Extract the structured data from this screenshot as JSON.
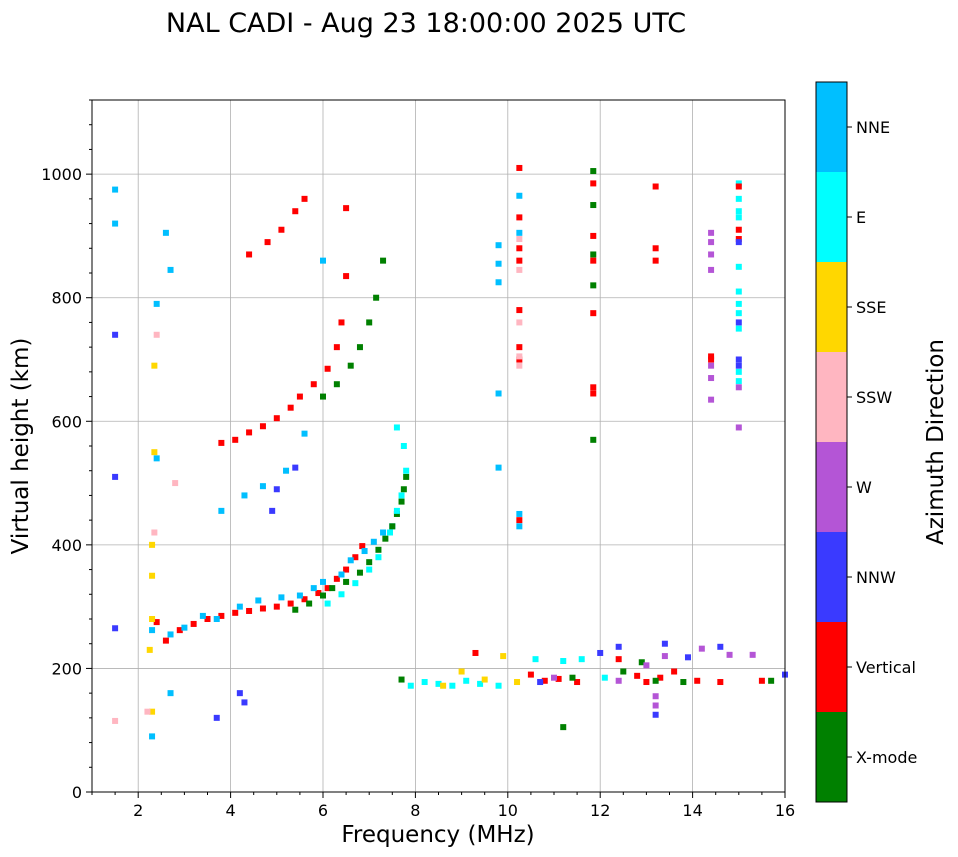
{
  "chart_data": {
    "type": "scatter",
    "title": "NAL CADI - Aug 23 18:00:00 2025 UTC",
    "xlabel": "Frequency (MHz)",
    "ylabel": "Virtual height (km)",
    "xlim": [
      1,
      16
    ],
    "ylim": [
      0,
      1120
    ],
    "x_ticks": [
      2,
      4,
      6,
      8,
      10,
      12,
      14,
      16
    ],
    "y_ticks": [
      0,
      200,
      400,
      600,
      800,
      1000
    ],
    "grid": true,
    "colorbar": {
      "label": "Azimuth Direction",
      "categories": [
        "X-mode",
        "Vertical",
        "NNW",
        "W",
        "SSW",
        "SSE",
        "E",
        "NNE"
      ],
      "colors": [
        "#008000",
        "#ff0000",
        "#3a3aff",
        "#b455d6",
        "#ffb6c1",
        "#ffd700",
        "#00ffff",
        "#00bfff"
      ]
    },
    "echo_groups": [
      {
        "name": "o-trace-f1",
        "category": "Vertical",
        "points": [
          [
            2.4,
            275
          ],
          [
            2.6,
            245
          ],
          [
            2.9,
            262
          ],
          [
            3.2,
            272
          ],
          [
            3.5,
            280
          ],
          [
            3.8,
            285
          ],
          [
            4.1,
            290
          ],
          [
            4.4,
            293
          ],
          [
            4.7,
            297
          ],
          [
            5.0,
            300
          ],
          [
            5.3,
            305
          ],
          [
            5.6,
            312
          ],
          [
            5.9,
            322
          ],
          [
            6.1,
            330
          ],
          [
            6.3,
            345
          ],
          [
            6.5,
            360
          ],
          [
            6.7,
            380
          ],
          [
            6.85,
            398
          ]
        ]
      },
      {
        "name": "o-trace-f1-scatter",
        "category": "NNE",
        "points": [
          [
            2.3,
            262
          ],
          [
            2.7,
            255
          ],
          [
            3.0,
            266
          ],
          [
            3.4,
            285
          ],
          [
            3.7,
            280
          ],
          [
            4.2,
            300
          ],
          [
            4.6,
            310
          ],
          [
            5.1,
            315
          ],
          [
            5.5,
            318
          ],
          [
            5.8,
            330
          ],
          [
            6.0,
            340
          ],
          [
            6.4,
            352
          ],
          [
            6.6,
            375
          ],
          [
            6.9,
            390
          ],
          [
            7.1,
            405
          ],
          [
            7.3,
            420
          ],
          [
            7.5,
            430
          ]
        ]
      },
      {
        "name": "x-trace-f1",
        "category": "X-mode",
        "points": [
          [
            5.4,
            295
          ],
          [
            5.7,
            305
          ],
          [
            6.0,
            318
          ],
          [
            6.2,
            330
          ],
          [
            6.5,
            340
          ],
          [
            6.8,
            355
          ],
          [
            7.0,
            372
          ],
          [
            7.2,
            392
          ],
          [
            7.35,
            410
          ],
          [
            7.5,
            430
          ],
          [
            7.6,
            450
          ],
          [
            7.7,
            470
          ],
          [
            7.75,
            490
          ],
          [
            7.8,
            510
          ]
        ]
      },
      {
        "name": "x-trace-f1-scatter",
        "category": "E",
        "points": [
          [
            6.1,
            305
          ],
          [
            6.4,
            320
          ],
          [
            6.7,
            338
          ],
          [
            7.0,
            360
          ],
          [
            7.2,
            380
          ],
          [
            7.45,
            420
          ],
          [
            7.6,
            455
          ],
          [
            7.7,
            480
          ],
          [
            7.8,
            520
          ],
          [
            7.75,
            560
          ],
          [
            7.6,
            590
          ]
        ]
      },
      {
        "name": "multihop-o",
        "category": "Vertical",
        "points": [
          [
            3.8,
            565
          ],
          [
            4.1,
            570
          ],
          [
            4.4,
            582
          ],
          [
            4.7,
            592
          ],
          [
            5.0,
            605
          ],
          [
            5.3,
            622
          ],
          [
            5.5,
            640
          ],
          [
            5.8,
            660
          ],
          [
            6.1,
            685
          ],
          [
            6.3,
            720
          ],
          [
            6.4,
            760
          ],
          [
            6.5,
            835
          ]
        ]
      },
      {
        "name": "multihop-x",
        "category": "X-mode",
        "points": [
          [
            6.0,
            640
          ],
          [
            6.3,
            660
          ],
          [
            6.6,
            690
          ],
          [
            6.8,
            720
          ],
          [
            7.0,
            760
          ],
          [
            7.15,
            800
          ],
          [
            7.3,
            860
          ]
        ]
      },
      {
        "name": "multihop-upper",
        "category": "Vertical",
        "points": [
          [
            4.4,
            870
          ],
          [
            4.8,
            890
          ],
          [
            5.1,
            910
          ],
          [
            5.4,
            940
          ],
          [
            5.6,
            960
          ],
          [
            6.5,
            945
          ]
        ]
      },
      {
        "name": "low-f-echoes",
        "category": "SSE",
        "points": [
          [
            2.3,
            400
          ],
          [
            2.3,
            350
          ],
          [
            2.35,
            550
          ],
          [
            2.35,
            690
          ],
          [
            2.3,
            280
          ],
          [
            2.25,
            230
          ],
          [
            2.3,
            130
          ]
        ]
      },
      {
        "name": "low-f-pink",
        "category": "SSW",
        "points": [
          [
            2.35,
            420
          ],
          [
            2.4,
            740
          ],
          [
            2.2,
            130
          ],
          [
            1.5,
            115
          ],
          [
            2.8,
            500
          ]
        ]
      },
      {
        "name": "low-f-cyan",
        "category": "NNE",
        "points": [
          [
            1.5,
            975
          ],
          [
            1.5,
            920
          ],
          [
            2.6,
            905
          ],
          [
            2.7,
            845
          ],
          [
            2.4,
            790
          ],
          [
            2.4,
            540
          ],
          [
            2.3,
            90
          ],
          [
            2.7,
            160
          ],
          [
            3.8,
            455
          ],
          [
            4.3,
            480
          ],
          [
            4.7,
            495
          ],
          [
            5.2,
            520
          ],
          [
            5.6,
            580
          ],
          [
            6.0,
            860
          ]
        ]
      },
      {
        "name": "low-f-blue",
        "category": "NNW",
        "points": [
          [
            1.5,
            740
          ],
          [
            1.5,
            510
          ],
          [
            1.5,
            265
          ],
          [
            4.3,
            145
          ],
          [
            4.2,
            160
          ],
          [
            3.7,
            120
          ],
          [
            5.0,
            490
          ],
          [
            5.4,
            525
          ],
          [
            4.9,
            455
          ]
        ]
      },
      {
        "name": "e-layer-cyan",
        "category": "E",
        "points": [
          [
            7.9,
            172
          ],
          [
            8.2,
            178
          ],
          [
            8.5,
            175
          ],
          [
            8.8,
            172
          ],
          [
            9.1,
            180
          ],
          [
            9.4,
            175
          ],
          [
            9.8,
            172
          ],
          [
            10.6,
            215
          ],
          [
            11.2,
            212
          ],
          [
            11.6,
            215
          ],
          [
            12.1,
            185
          ]
        ]
      },
      {
        "name": "e-layer-yellow",
        "category": "SSE",
        "points": [
          [
            8.6,
            172
          ],
          [
            9.0,
            195
          ],
          [
            9.5,
            182
          ],
          [
            9.9,
            220
          ],
          [
            10.2,
            178
          ]
        ]
      },
      {
        "name": "e-layer-red",
        "category": "Vertical",
        "points": [
          [
            9.3,
            225
          ],
          [
            10.5,
            190
          ],
          [
            10.8,
            180
          ],
          [
            11.1,
            183
          ],
          [
            11.5,
            178
          ],
          [
            12.4,
            215
          ],
          [
            12.8,
            188
          ],
          [
            13.0,
            178
          ],
          [
            13.3,
            185
          ],
          [
            13.6,
            195
          ],
          [
            14.1,
            180
          ],
          [
            14.6,
            178
          ],
          [
            15.5,
            180
          ]
        ]
      },
      {
        "name": "e-layer-green",
        "category": "X-mode",
        "points": [
          [
            7.7,
            182
          ],
          [
            11.2,
            105
          ],
          [
            11.4,
            185
          ],
          [
            12.5,
            195
          ],
          [
            12.9,
            210
          ],
          [
            13.2,
            180
          ],
          [
            13.8,
            178
          ],
          [
            15.7,
            180
          ]
        ]
      },
      {
        "name": "e-layer-purple",
        "category": "W",
        "points": [
          [
            11.0,
            185
          ],
          [
            12.4,
            180
          ],
          [
            13.0,
            205
          ],
          [
            13.2,
            155
          ],
          [
            13.2,
            140
          ],
          [
            13.4,
            220
          ],
          [
            14.2,
            232
          ],
          [
            14.8,
            222
          ],
          [
            15.3,
            222
          ]
        ]
      },
      {
        "name": "e-layer-blue",
        "category": "NNW",
        "points": [
          [
            10.7,
            178
          ],
          [
            12.0,
            225
          ],
          [
            12.4,
            235
          ],
          [
            13.2,
            125
          ],
          [
            13.4,
            240
          ],
          [
            13.9,
            218
          ],
          [
            14.6,
            235
          ],
          [
            16.0,
            190
          ]
        ]
      },
      {
        "name": "col-10.2",
        "category": "Vertical",
        "points": [
          [
            10.25,
            1010
          ],
          [
            10.25,
            930
          ],
          [
            10.25,
            880
          ],
          [
            10.25,
            860
          ],
          [
            10.25,
            780
          ],
          [
            10.25,
            720
          ],
          [
            10.25,
            700
          ],
          [
            10.25,
            440
          ]
        ]
      },
      {
        "name": "col-10.2-pink",
        "category": "SSW",
        "points": [
          [
            10.25,
            895
          ],
          [
            10.25,
            845
          ],
          [
            10.25,
            760
          ],
          [
            10.25,
            705
          ],
          [
            10.25,
            690
          ]
        ]
      },
      {
        "name": "col-10.2-misc",
        "category": "NNE",
        "points": [
          [
            10.25,
            965
          ],
          [
            10.25,
            905
          ],
          [
            10.25,
            450
          ],
          [
            10.25,
            430
          ],
          [
            9.8,
            525
          ],
          [
            9.8,
            645
          ],
          [
            9.8,
            825
          ],
          [
            9.8,
            855
          ],
          [
            9.8,
            885
          ]
        ]
      },
      {
        "name": "col-11.8",
        "category": "X-mode",
        "points": [
          [
            11.85,
            1005
          ],
          [
            11.85,
            950
          ],
          [
            11.85,
            870
          ],
          [
            11.85,
            820
          ],
          [
            11.85,
            570
          ]
        ]
      },
      {
        "name": "col-11.8-red",
        "category": "Vertical",
        "points": [
          [
            11.85,
            985
          ],
          [
            11.85,
            900
          ],
          [
            11.85,
            860
          ],
          [
            11.85,
            775
          ],
          [
            11.85,
            655
          ],
          [
            11.85,
            645
          ]
        ]
      },
      {
        "name": "col-13.2",
        "category": "Vertical",
        "points": [
          [
            13.2,
            980
          ],
          [
            13.2,
            880
          ],
          [
            13.2,
            860
          ]
        ]
      },
      {
        "name": "col-14.4",
        "category": "W",
        "points": [
          [
            14.4,
            905
          ],
          [
            14.4,
            890
          ],
          [
            14.4,
            870
          ],
          [
            14.4,
            845
          ],
          [
            14.4,
            690
          ],
          [
            14.4,
            670
          ],
          [
            14.4,
            635
          ]
        ]
      },
      {
        "name": "col-14.4-red",
        "category": "Vertical",
        "points": [
          [
            14.4,
            705
          ],
          [
            14.4,
            700
          ]
        ]
      },
      {
        "name": "col-15.0-cyan",
        "category": "E",
        "points": [
          [
            15.0,
            985
          ],
          [
            15.0,
            960
          ],
          [
            15.0,
            940
          ],
          [
            15.0,
            930
          ],
          [
            15.0,
            850
          ],
          [
            15.0,
            810
          ],
          [
            15.0,
            790
          ],
          [
            15.0,
            775
          ],
          [
            15.0,
            750
          ],
          [
            15.0,
            680
          ],
          [
            15.0,
            665
          ]
        ]
      },
      {
        "name": "col-15.0-red",
        "category": "Vertical",
        "points": [
          [
            15.0,
            980
          ],
          [
            15.0,
            910
          ],
          [
            15.0,
            895
          ]
        ]
      },
      {
        "name": "col-15.0-blue",
        "category": "NNW",
        "points": [
          [
            15.0,
            890
          ],
          [
            15.0,
            760
          ],
          [
            15.0,
            700
          ],
          [
            15.0,
            690
          ]
        ]
      },
      {
        "name": "col-15.0-purple",
        "category": "W",
        "points": [
          [
            15.0,
            655
          ],
          [
            15.0,
            590
          ]
        ]
      }
    ]
  }
}
